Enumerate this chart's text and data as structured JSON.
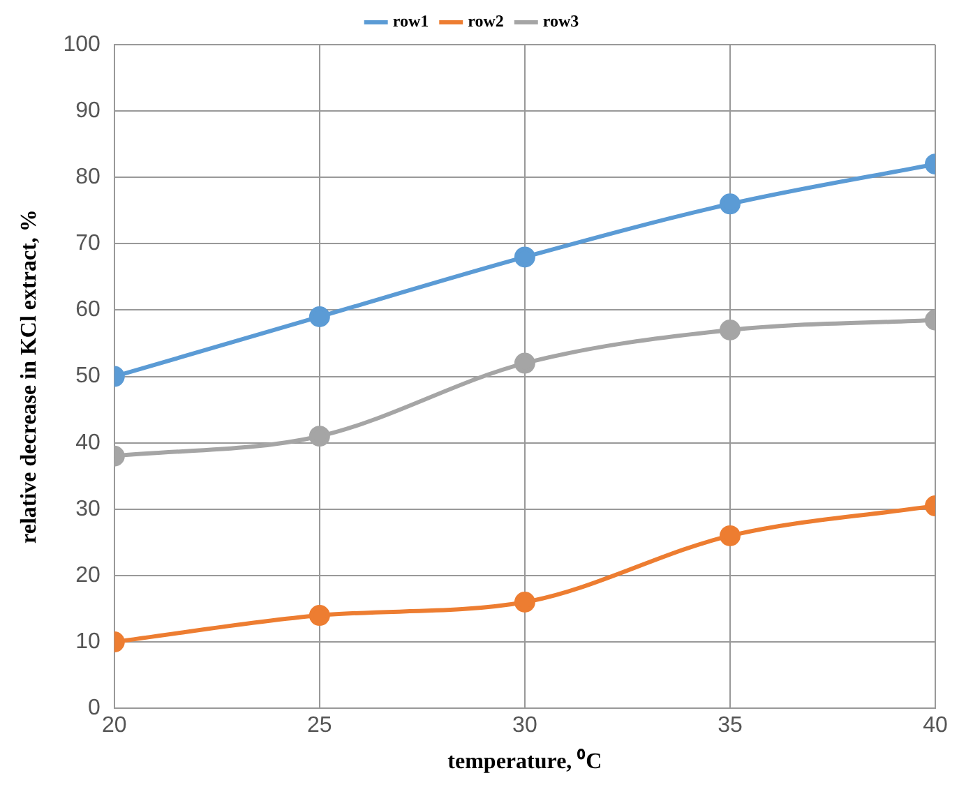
{
  "chart_data": {
    "type": "line",
    "xlabel": "temperature, ⁰C",
    "ylabel": "relative decrease in KCl extract, %",
    "x": [
      20,
      25,
      30,
      35,
      40
    ],
    "series": [
      {
        "name": "row1",
        "color": "#5b9bd5",
        "values": [
          50,
          59,
          68,
          76,
          82
        ]
      },
      {
        "name": "row2",
        "color": "#ed7d31",
        "values": [
          10,
          14,
          16,
          26,
          30.5
        ]
      },
      {
        "name": "row3",
        "color": "#a5a5a5",
        "values": [
          38,
          41,
          52,
          57,
          58.5
        ]
      }
    ],
    "xlim": [
      20,
      40
    ],
    "xticks": [
      20,
      25,
      30,
      35,
      40
    ],
    "ylim": [
      0,
      100
    ],
    "yticks": [
      0,
      10,
      20,
      30,
      40,
      50,
      60,
      70,
      80,
      90,
      100
    ],
    "grid": true,
    "legend": "top",
    "marker": "circle",
    "line_style": "solid"
  }
}
